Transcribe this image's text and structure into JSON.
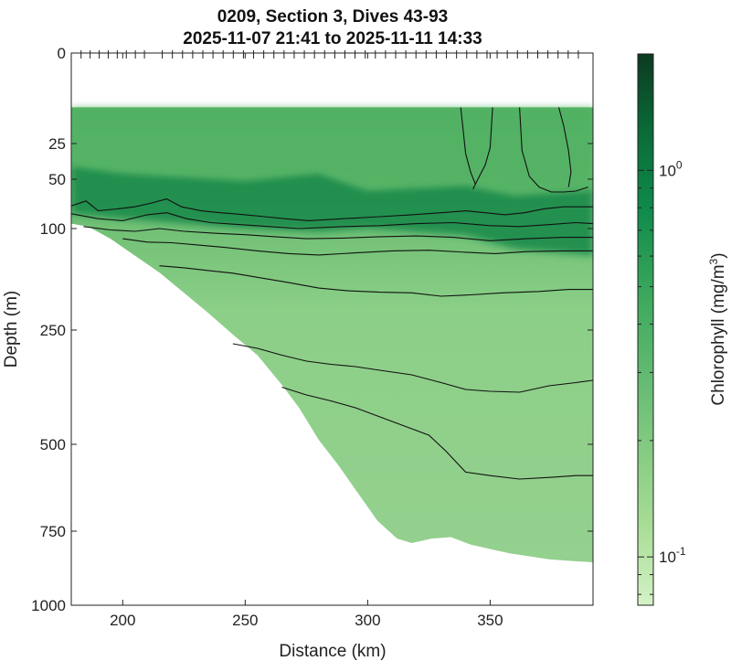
{
  "chart_data": {
    "type": "heatmap",
    "title": "0209, Section 3, Dives 43-93",
    "subtitle": "2025-11-07 21:41 to 2025-11-11 14:33",
    "xlabel": "Distance (km)",
    "ylabel": "Depth (m)",
    "xlim": [
      179,
      392
    ],
    "ylim": [
      0,
      1000
    ],
    "y_scale": "nonlinear (square-root-like), depth increasing downward",
    "x_ticks": [
      "200",
      "250",
      "300",
      "350"
    ],
    "y_ticks": [
      "0",
      "25",
      "50",
      "100",
      "250",
      "500",
      "750",
      "1000"
    ],
    "colorbar": {
      "label": "Chlorophyll (mg/m",
      "label_superscript": "3",
      "label_close": ")",
      "scale": "log",
      "range": [
        0.075,
        2.0
      ],
      "ticks": [
        {
          "value": 1.0,
          "base": "10",
          "exp": "0"
        },
        {
          "value": 0.1,
          "base": "10",
          "exp": "-1"
        }
      ],
      "colormap": "light-to-dark green"
    },
    "dive_marker_count": 50,
    "surface_data_gap_depth_m": 15,
    "bottom_profile": [
      {
        "x": 179,
        "depth": 95
      },
      {
        "x": 186,
        "depth": 98
      },
      {
        "x": 195,
        "depth": 115
      },
      {
        "x": 205,
        "depth": 140
      },
      {
        "x": 215,
        "depth": 165
      },
      {
        "x": 225,
        "depth": 195
      },
      {
        "x": 235,
        "depth": 225
      },
      {
        "x": 245,
        "depth": 260
      },
      {
        "x": 255,
        "depth": 305
      },
      {
        "x": 265,
        "depth": 370
      },
      {
        "x": 272,
        "depth": 420
      },
      {
        "x": 280,
        "depth": 490
      },
      {
        "x": 288,
        "depth": 560
      },
      {
        "x": 296,
        "depth": 640
      },
      {
        "x": 304,
        "depth": 720
      },
      {
        "x": 312,
        "depth": 775
      },
      {
        "x": 318,
        "depth": 790
      },
      {
        "x": 326,
        "depth": 775
      },
      {
        "x": 334,
        "depth": 770
      },
      {
        "x": 342,
        "depth": 795
      },
      {
        "x": 350,
        "depth": 810
      },
      {
        "x": 358,
        "depth": 825
      },
      {
        "x": 366,
        "depth": 835
      },
      {
        "x": 374,
        "depth": 845
      },
      {
        "x": 382,
        "depth": 850
      },
      {
        "x": 392,
        "depth": 855
      }
    ],
    "chlorophyll_max_layer": {
      "description": "subsurface chlorophyll maximum",
      "profile": [
        {
          "x": 179,
          "top": 40,
          "bottom": 85
        },
        {
          "x": 200,
          "top": 45,
          "bottom": 90
        },
        {
          "x": 250,
          "top": 50,
          "bottom": 100
        },
        {
          "x": 280,
          "top": 45,
          "bottom": 105
        },
        {
          "x": 300,
          "top": 60,
          "bottom": 100
        },
        {
          "x": 340,
          "top": 55,
          "bottom": 110
        },
        {
          "x": 360,
          "top": 65,
          "bottom": 130
        },
        {
          "x": 392,
          "top": 60,
          "bottom": 140
        }
      ],
      "peak_value": 1.1
    },
    "contours": [
      {
        "points": [
          [
            179,
            77
          ],
          [
            185,
            72
          ],
          [
            190,
            82
          ],
          [
            198,
            80
          ],
          [
            205,
            78
          ],
          [
            212,
            74
          ],
          [
            218,
            70
          ],
          [
            224,
            78
          ],
          [
            232,
            82
          ],
          [
            240,
            84
          ],
          [
            250,
            86
          ],
          [
            258,
            88
          ],
          [
            266,
            90
          ],
          [
            276,
            92
          ],
          [
            290,
            90
          ],
          [
            305,
            88
          ],
          [
            318,
            86
          ],
          [
            330,
            84
          ],
          [
            340,
            82
          ],
          [
            348,
            84
          ],
          [
            356,
            86
          ],
          [
            364,
            84
          ],
          [
            372,
            80
          ],
          [
            380,
            78
          ],
          [
            392,
            78
          ]
        ]
      },
      {
        "points": [
          [
            179,
            85
          ],
          [
            190,
            90
          ],
          [
            200,
            92
          ],
          [
            210,
            86
          ],
          [
            218,
            84
          ],
          [
            226,
            90
          ],
          [
            236,
            94
          ],
          [
            248,
            96
          ],
          [
            260,
            98
          ],
          [
            272,
            100
          ],
          [
            290,
            98
          ],
          [
            305,
            97
          ],
          [
            320,
            95
          ],
          [
            335,
            94
          ],
          [
            350,
            97
          ],
          [
            362,
            98
          ],
          [
            374,
            96
          ],
          [
            385,
            94
          ],
          [
            392,
            95
          ]
        ]
      },
      {
        "points": [
          [
            184,
            98
          ],
          [
            195,
            102
          ],
          [
            205,
            104
          ],
          [
            215,
            100
          ],
          [
            225,
            104
          ],
          [
            238,
            107
          ],
          [
            250,
            109
          ],
          [
            262,
            112
          ],
          [
            275,
            115
          ],
          [
            290,
            114
          ],
          [
            305,
            112
          ],
          [
            320,
            111
          ],
          [
            335,
            113
          ],
          [
            350,
            118
          ],
          [
            365,
            115
          ],
          [
            380,
            113
          ],
          [
            392,
            113
          ]
        ]
      },
      {
        "points": [
          [
            200,
            115
          ],
          [
            210,
            120
          ],
          [
            220,
            121
          ],
          [
            230,
            124
          ],
          [
            242,
            128
          ],
          [
            255,
            133
          ],
          [
            268,
            137
          ],
          [
            280,
            139
          ],
          [
            295,
            136
          ],
          [
            310,
            133
          ],
          [
            325,
            132
          ],
          [
            340,
            135
          ],
          [
            352,
            137
          ],
          [
            365,
            134
          ],
          [
            380,
            133
          ],
          [
            392,
            133
          ]
        ]
      },
      {
        "points": [
          [
            215,
            155
          ],
          [
            225,
            158
          ],
          [
            235,
            162
          ],
          [
            245,
            166
          ],
          [
            255,
            172
          ],
          [
            268,
            180
          ],
          [
            280,
            188
          ],
          [
            292,
            192
          ],
          [
            305,
            194
          ],
          [
            318,
            195
          ],
          [
            330,
            200
          ],
          [
            342,
            198
          ],
          [
            355,
            195
          ],
          [
            370,
            193
          ],
          [
            382,
            190
          ],
          [
            392,
            190
          ]
        ]
      },
      {
        "points": [
          [
            245,
            280
          ],
          [
            255,
            290
          ],
          [
            265,
            305
          ],
          [
            275,
            318
          ],
          [
            285,
            325
          ],
          [
            295,
            330
          ],
          [
            305,
            338
          ],
          [
            318,
            348
          ],
          [
            330,
            365
          ],
          [
            340,
            380
          ],
          [
            350,
            384
          ],
          [
            362,
            386
          ],
          [
            374,
            372
          ],
          [
            385,
            365
          ],
          [
            392,
            360
          ]
        ]
      },
      {
        "points": [
          [
            265,
            375
          ],
          [
            275,
            392
          ],
          [
            285,
            405
          ],
          [
            295,
            420
          ],
          [
            305,
            440
          ],
          [
            315,
            460
          ],
          [
            325,
            480
          ],
          [
            332,
            520
          ],
          [
            340,
            580
          ],
          [
            350,
            590
          ],
          [
            362,
            600
          ],
          [
            375,
            595
          ],
          [
            385,
            590
          ],
          [
            392,
            590
          ]
        ]
      },
      {
        "points": [
          [
            338,
            15
          ],
          [
            340,
            32
          ],
          [
            342,
            45
          ],
          [
            344,
            55
          ]
        ]
      },
      {
        "points": [
          [
            351,
            15
          ],
          [
            350,
            28
          ],
          [
            348,
            40
          ],
          [
            345,
            50
          ],
          [
            343,
            60
          ]
        ]
      },
      {
        "points": [
          [
            362,
            15
          ],
          [
            363,
            30
          ],
          [
            366,
            48
          ],
          [
            370,
            58
          ],
          [
            375,
            63
          ],
          [
            380,
            63
          ],
          [
            385,
            62
          ],
          [
            390,
            58
          ]
        ]
      },
      {
        "points": [
          [
            378,
            15
          ],
          [
            380,
            20
          ],
          [
            382,
            30
          ],
          [
            383,
            45
          ],
          [
            382,
            58
          ]
        ]
      }
    ]
  }
}
